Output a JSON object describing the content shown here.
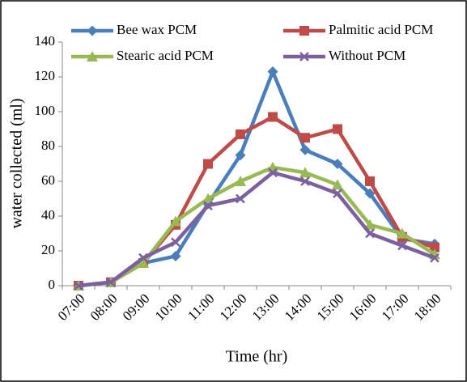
{
  "chart_data": {
    "type": "line",
    "y_label": "water collected (ml)",
    "x_label": "Time (hr)",
    "categories": [
      "07:00",
      "08:00",
      "09:00",
      "10:00",
      "11:00",
      "12:00",
      "13:00",
      "14:00",
      "15:00",
      "16:00",
      "17:00",
      "18:00"
    ],
    "series": [
      {
        "name": "Bee wax PCM",
        "color": "#4a7ebb",
        "marker": "diamond",
        "values": [
          0,
          2,
          13,
          17,
          47,
          75,
          123,
          78,
          70,
          53,
          27,
          24
        ]
      },
      {
        "name": "Palmitic acid PCM",
        "color": "#be4b48",
        "marker": "square",
        "values": [
          0,
          2,
          13,
          35,
          70,
          87,
          97,
          85,
          90,
          60,
          28,
          22
        ]
      },
      {
        "name": "Stearic acid PCM",
        "color": "#98b954",
        "marker": "triangle",
        "values": [
          0,
          2,
          13,
          37,
          50,
          60,
          68,
          65,
          58,
          35,
          30,
          18
        ]
      },
      {
        "name": "Without PCM",
        "color": "#7d60a0",
        "marker": "x",
        "values": [
          0,
          2,
          16,
          25,
          46,
          50,
          65,
          60,
          53,
          30,
          23,
          16
        ]
      }
    ],
    "ylim": [
      0,
      140
    ],
    "yticks": [
      0,
      20,
      40,
      60,
      80,
      100,
      120,
      140
    ],
    "grid": false,
    "legend": "top"
  }
}
